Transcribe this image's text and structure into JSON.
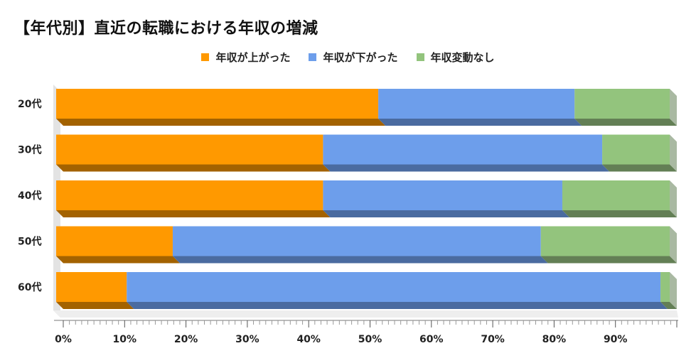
{
  "chart_data": {
    "type": "bar",
    "orientation": "horizontal",
    "stacked": "percent",
    "title": "【年代別】直近の転職における年収の増減",
    "categories": [
      "20代",
      "30代",
      "40代",
      "50代",
      "60代"
    ],
    "series": [
      {
        "name": "年収が上がった",
        "color": "#FF9900",
        "shade": "#A36200",
        "values": [
          52.5,
          43.5,
          43.5,
          19.0,
          11.5
        ]
      },
      {
        "name": "年収が下がった",
        "color": "#6D9EEB",
        "shade": "#4A6BA0",
        "values": [
          32.0,
          45.5,
          39.0,
          60.0,
          87.0
        ]
      },
      {
        "name": "年収変動なし",
        "color": "#93C47D",
        "shade": "#637F55",
        "values": [
          15.5,
          11.0,
          17.5,
          21.0,
          1.5
        ]
      }
    ],
    "x_ticks": [
      "0%",
      "10%",
      "20%",
      "30%",
      "40%",
      "50%",
      "60%",
      "70%",
      "80%",
      "90%"
    ],
    "xlim": [
      0,
      100
    ],
    "legend": "top-center",
    "grid": false
  }
}
